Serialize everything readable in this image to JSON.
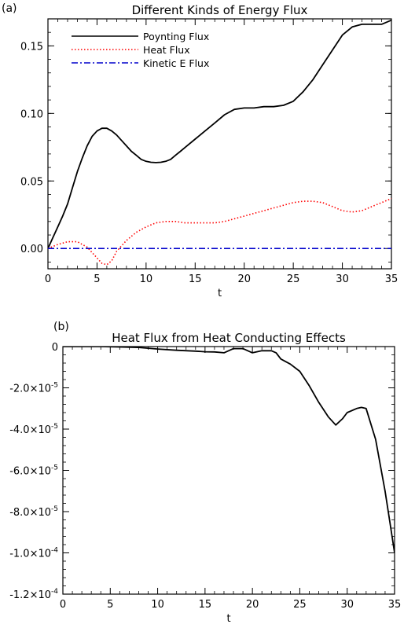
{
  "chart_data": [
    {
      "panel_label": "(a)",
      "type": "line",
      "title": "Different Kinds of Energy Flux",
      "xlabel": "t",
      "ylabel": "",
      "xlim": [
        0,
        35
      ],
      "ylim": [
        -0.015,
        0.17
      ],
      "xticks": [
        0,
        5,
        10,
        15,
        20,
        25,
        30,
        35
      ],
      "xtick_labels": [
        "0",
        "5",
        "10",
        "15",
        "20",
        "25",
        "30",
        "35"
      ],
      "yticks": [
        0.0,
        0.05,
        0.1,
        0.15
      ],
      "ytick_labels": [
        "0.00",
        "0.05",
        "0.10",
        "0.15"
      ],
      "legend_position": "top-left",
      "series": [
        {
          "name": "Poynting Flux",
          "color": "#000000",
          "style": "solid",
          "x": [
            0,
            0.5,
            1,
            1.5,
            2,
            2.5,
            3,
            3.5,
            4,
            4.5,
            5,
            5.5,
            6,
            6.5,
            7,
            7.5,
            8,
            8.5,
            9,
            9.5,
            10,
            10.5,
            11,
            11.5,
            12,
            12.5,
            13,
            13.5,
            14,
            15,
            16,
            17,
            18,
            19,
            20,
            21,
            22,
            23,
            24,
            25,
            26,
            27,
            28,
            29,
            30,
            31,
            32,
            33,
            34,
            35
          ],
          "y": [
            0,
            0.008,
            0.016,
            0.024,
            0.033,
            0.045,
            0.057,
            0.067,
            0.076,
            0.083,
            0.087,
            0.089,
            0.089,
            0.087,
            0.084,
            0.08,
            0.076,
            0.072,
            0.069,
            0.066,
            0.0645,
            0.0638,
            0.0636,
            0.0638,
            0.0645,
            0.066,
            0.069,
            0.072,
            0.075,
            0.081,
            0.087,
            0.093,
            0.099,
            0.103,
            0.104,
            0.104,
            0.105,
            0.105,
            0.106,
            0.109,
            0.116,
            0.125,
            0.136,
            0.147,
            0.158,
            0.164,
            0.166,
            0.166,
            0.166,
            0.169
          ]
        },
        {
          "name": "Heat Flux",
          "color": "#ff0000",
          "style": "dotted",
          "x": [
            0,
            1,
            2,
            3,
            4,
            5,
            5.5,
            6,
            6.5,
            7,
            8,
            9,
            10,
            11,
            12,
            13,
            14,
            15,
            16,
            17,
            18,
            19,
            20,
            21,
            22,
            23,
            24,
            25,
            26,
            27,
            28,
            29,
            30,
            31,
            32,
            33,
            34,
            35
          ],
          "y": [
            0,
            0.003,
            0.005,
            0.005,
            0.001,
            -0.007,
            -0.011,
            -0.012,
            -0.009,
            -0.002,
            0.006,
            0.012,
            0.016,
            0.019,
            0.02,
            0.02,
            0.019,
            0.019,
            0.019,
            0.019,
            0.02,
            0.022,
            0.024,
            0.026,
            0.028,
            0.03,
            0.032,
            0.034,
            0.035,
            0.035,
            0.034,
            0.031,
            0.028,
            0.027,
            0.028,
            0.031,
            0.034,
            0.037
          ]
        },
        {
          "name": "Kinetic E Flux",
          "color": "#0000cc",
          "style": "dashdot",
          "x": [
            0,
            5,
            10,
            15,
            20,
            25,
            30,
            35
          ],
          "y": [
            0,
            0,
            0,
            0,
            0,
            0,
            0,
            0
          ]
        }
      ]
    },
    {
      "panel_label": "(b)",
      "type": "line",
      "title": "Heat Flux from Heat Conducting Effects",
      "xlabel": "t",
      "ylabel": "",
      "xlim": [
        0,
        35
      ],
      "ylim": [
        -0.00012,
        0
      ],
      "xticks": [
        0,
        5,
        10,
        15,
        20,
        25,
        30,
        35
      ],
      "xtick_labels": [
        "0",
        "5",
        "10",
        "15",
        "20",
        "25",
        "30",
        "35"
      ],
      "yticks": [
        0,
        -2e-05,
        -4e-05,
        -6e-05,
        -8e-05,
        -0.0001,
        -0.00012
      ],
      "ytick_labels": [
        {
          "mant": "0",
          "exp": ""
        },
        {
          "mant": "-2.0×10",
          "exp": "-5"
        },
        {
          "mant": "-4.0×10",
          "exp": "-5"
        },
        {
          "mant": "-6.0×10",
          "exp": "-5"
        },
        {
          "mant": "-8.0×10",
          "exp": "-5"
        },
        {
          "mant": "-1.0×10",
          "exp": "-4"
        },
        {
          "mant": "-1.2×10",
          "exp": "-4"
        }
      ],
      "series": [
        {
          "color": "#000000",
          "style": "solid",
          "x": [
            0,
            2,
            4,
            6,
            8,
            10,
            12,
            14,
            15,
            16,
            17,
            18,
            19,
            20,
            21,
            22,
            22.5,
            23,
            24,
            25,
            26,
            27,
            28,
            28.8,
            29.5,
            30,
            31,
            31.5,
            32,
            33,
            34,
            34.5,
            35
          ],
          "y": [
            0,
            0,
            0,
            -2e-07,
            -4e-07,
            -1.2e-06,
            -1.8e-06,
            -2.2e-06,
            -2.5e-06,
            -2.6e-06,
            -3e-06,
            -1e-06,
            -1e-06,
            -3e-06,
            -2e-06,
            -2e-06,
            -3e-06,
            -6e-06,
            -8.5e-06,
            -1.2e-05,
            -1.9e-05,
            -2.7e-05,
            -3.4e-05,
            -3.8e-05,
            -3.5e-05,
            -3.2e-05,
            -3e-05,
            -2.95e-05,
            -3e-05,
            -4.5e-05,
            -7e-05,
            -8.5e-05,
            -0.0001
          ]
        }
      ]
    }
  ]
}
